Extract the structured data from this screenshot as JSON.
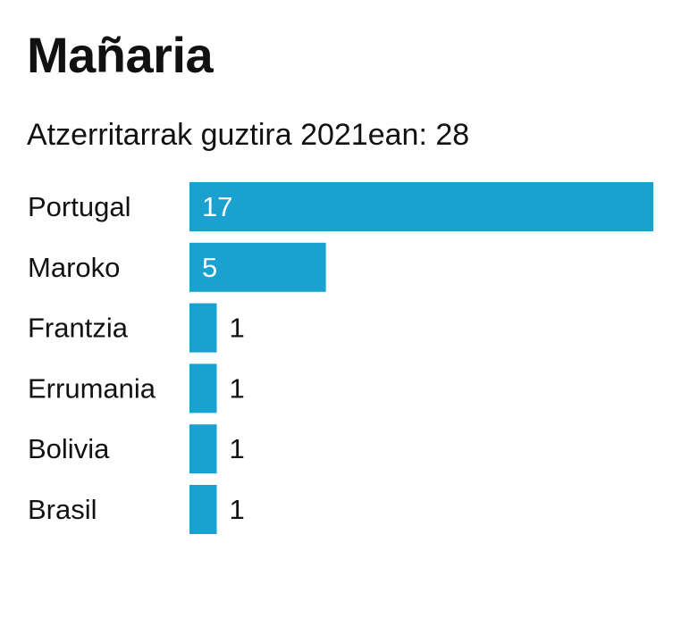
{
  "title": "Mañaria",
  "subtitle": "Atzerritarrak guztira 2021ean: 28",
  "colors": {
    "bar": "#1aa1cf",
    "label_inside": "#ffffff",
    "label_outside": "#111111",
    "text": "#111111"
  },
  "chart_data": {
    "type": "bar",
    "orientation": "horizontal",
    "categories": [
      "Portugal",
      "Maroko",
      "Frantzia",
      "Errumania",
      "Bolivia",
      "Brasil"
    ],
    "values": [
      17,
      5,
      1,
      1,
      1,
      1
    ],
    "xlim": [
      0,
      17
    ],
    "grid": false,
    "legend": "none"
  }
}
